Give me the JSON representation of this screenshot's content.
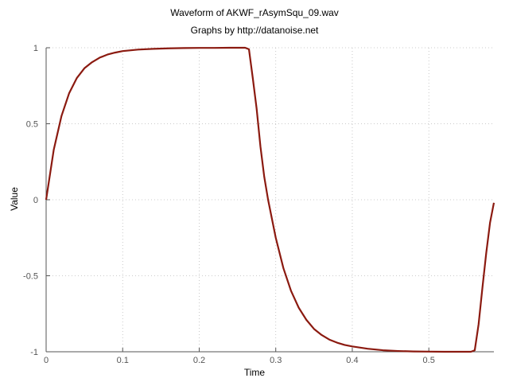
{
  "chart_data": {
    "type": "line",
    "title": "Waveform of AKWF_rAsymSqu_09.wav",
    "subtitle": "Graphs by http://datanoise.net",
    "xlabel": "Time",
    "ylabel": "Value",
    "xlim": [
      0,
      0.585
    ],
    "ylim": [
      -1,
      1
    ],
    "x_ticks": [
      0,
      0.1,
      0.2,
      0.3,
      0.4,
      0.5
    ],
    "x_tick_labels": [
      "0",
      "0.1",
      "0.2",
      "0.3",
      "0.4",
      "0.5"
    ],
    "y_ticks": [
      1,
      0.5,
      0,
      -0.5,
      -1
    ],
    "y_tick_labels": [
      "1",
      "0.5",
      "0",
      "-0.5",
      "-1"
    ],
    "grid": true,
    "line_color": "#8b1a10",
    "series": [
      {
        "x": [
          0,
          0.01,
          0.02,
          0.03,
          0.04,
          0.05,
          0.06,
          0.07,
          0.08,
          0.09,
          0.1,
          0.12,
          0.14,
          0.16,
          0.18,
          0.2,
          0.22,
          0.24,
          0.26,
          0.265,
          0.27,
          0.275,
          0.28,
          0.285,
          0.29,
          0.3,
          0.31,
          0.32,
          0.33,
          0.34,
          0.35,
          0.36,
          0.37,
          0.38,
          0.39,
          0.4,
          0.42,
          0.44,
          0.46,
          0.48,
          0.5,
          0.52,
          0.54,
          0.555,
          0.56,
          0.565,
          0.57,
          0.575,
          0.58,
          0.585
        ],
        "y": [
          0,
          0.33,
          0.55,
          0.7,
          0.8,
          0.865,
          0.905,
          0.935,
          0.955,
          0.968,
          0.978,
          0.988,
          0.993,
          0.996,
          0.998,
          0.999,
          0.999,
          1.0,
          1.0,
          0.99,
          0.8,
          0.6,
          0.35,
          0.15,
          0.0,
          -0.25,
          -0.45,
          -0.6,
          -0.71,
          -0.79,
          -0.85,
          -0.89,
          -0.92,
          -0.94,
          -0.955,
          -0.965,
          -0.98,
          -0.99,
          -0.995,
          -0.998,
          -0.999,
          -1.0,
          -1.0,
          -1.0,
          -0.99,
          -0.82,
          -0.58,
          -0.35,
          -0.15,
          -0.02
        ]
      }
    ]
  }
}
